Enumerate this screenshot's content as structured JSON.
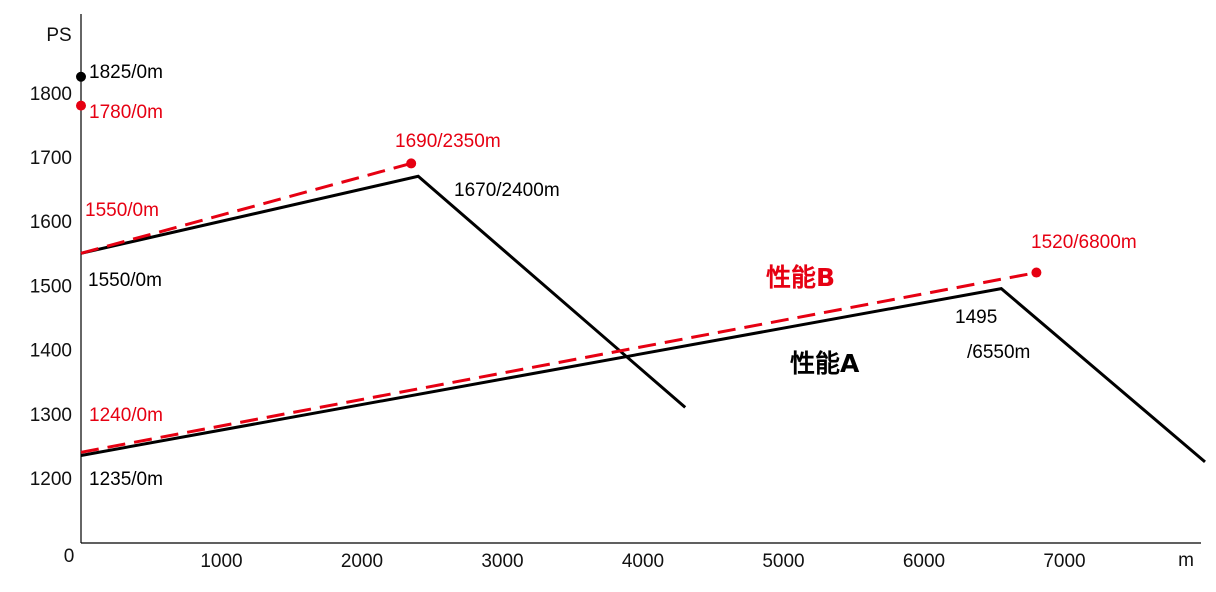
{
  "chart_data": {
    "type": "line",
    "x_unit": "m",
    "y_unit": "PS",
    "origin_label": "0",
    "xlim": [
      0,
      8000
    ],
    "ylim": [
      1000,
      1900
    ],
    "x_ticks": [
      "1000",
      "2000",
      "3000",
      "4000",
      "5000",
      "6000",
      "7000"
    ],
    "y_ticks": [
      "1200",
      "1300",
      "1400",
      "1500",
      "1600",
      "1700",
      "1800"
    ],
    "colors": {
      "A": "#000000",
      "B": "#e60012"
    },
    "series": [
      {
        "name": "性能A",
        "color": "#000000",
        "style": "solid",
        "segments": [
          [
            [
              0,
              1550
            ],
            [
              2400,
              1670
            ],
            [
              4300,
              1310
            ]
          ],
          [
            [
              0,
              1235
            ],
            [
              6550,
              1495
            ],
            [
              8000,
              1225
            ]
          ]
        ],
        "point": [
          0,
          1825
        ]
      },
      {
        "name": "性能B",
        "color": "#e60012",
        "style": "dashed",
        "segments": [
          [
            [
              0,
              1550
            ],
            [
              2350,
              1690
            ]
          ],
          [
            [
              0,
              1240
            ],
            [
              6800,
              1520
            ]
          ]
        ],
        "points": [
          [
            0,
            1780
          ],
          [
            2350,
            1690
          ],
          [
            6800,
            1520
          ]
        ]
      }
    ],
    "annotations": [
      {
        "id": "a-1825",
        "text": "1825/0m",
        "color": "#000000"
      },
      {
        "id": "b-1780",
        "text": "1780/0m",
        "color": "#e60012"
      },
      {
        "id": "b-1690",
        "text": "1690/2350m",
        "color": "#e60012"
      },
      {
        "id": "a-1670",
        "text": "1670/2400m",
        "color": "#000000"
      },
      {
        "id": "b-1550",
        "text": "1550/0m",
        "color": "#e60012"
      },
      {
        "id": "a-1550",
        "text": "1550/0m",
        "color": "#000000"
      },
      {
        "id": "b-1520",
        "text": "1520/6800m",
        "color": "#e60012"
      },
      {
        "id": "a-1495a",
        "text": "1495",
        "color": "#000000"
      },
      {
        "id": "a-1495b",
        "text": "/6550m",
        "color": "#000000"
      },
      {
        "id": "b-1240",
        "text": "1240/0m",
        "color": "#e60012"
      },
      {
        "id": "a-1235",
        "text": "1235/0m",
        "color": "#000000"
      }
    ]
  }
}
